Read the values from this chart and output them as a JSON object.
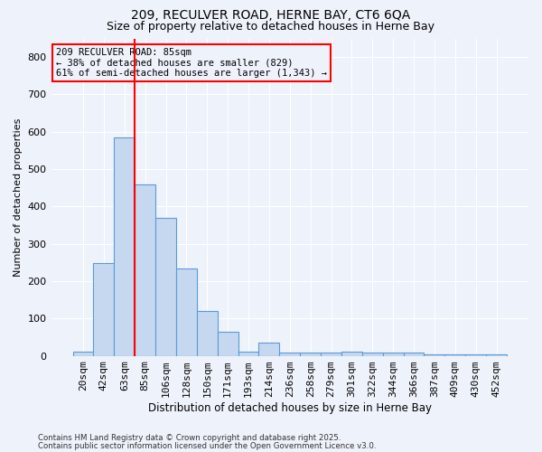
{
  "title1": "209, RECULVER ROAD, HERNE BAY, CT6 6QA",
  "title2": "Size of property relative to detached houses in Herne Bay",
  "xlabel": "Distribution of detached houses by size in Herne Bay",
  "ylabel": "Number of detached properties",
  "categories": [
    "20sqm",
    "42sqm",
    "63sqm",
    "85sqm",
    "106sqm",
    "128sqm",
    "150sqm",
    "171sqm",
    "193sqm",
    "214sqm",
    "236sqm",
    "258sqm",
    "279sqm",
    "301sqm",
    "322sqm",
    "344sqm",
    "366sqm",
    "387sqm",
    "409sqm",
    "430sqm",
    "452sqm"
  ],
  "bar_values": [
    10,
    248,
    585,
    460,
    370,
    235,
    120,
    65,
    10,
    35,
    8,
    8,
    8,
    12,
    8,
    8,
    8,
    3,
    3,
    3,
    3
  ],
  "bar_color": "#c5d8f0",
  "bar_edge_color": "#5b9bd5",
  "red_line_index": 2,
  "annotation_title": "209 RECULVER ROAD: 85sqm",
  "annotation_line1": "← 38% of detached houses are smaller (829)",
  "annotation_line2": "61% of semi-detached houses are larger (1,343) →",
  "ylim": [
    0,
    850
  ],
  "yticks": [
    0,
    100,
    200,
    300,
    400,
    500,
    600,
    700,
    800
  ],
  "footer1": "Contains HM Land Registry data © Crown copyright and database right 2025.",
  "footer2": "Contains public sector information licensed under the Open Government Licence v3.0.",
  "bg_color": "#eef2fa",
  "grid_color": "#ffffff",
  "title_fontsize": 10,
  "subtitle_fontsize": 9
}
